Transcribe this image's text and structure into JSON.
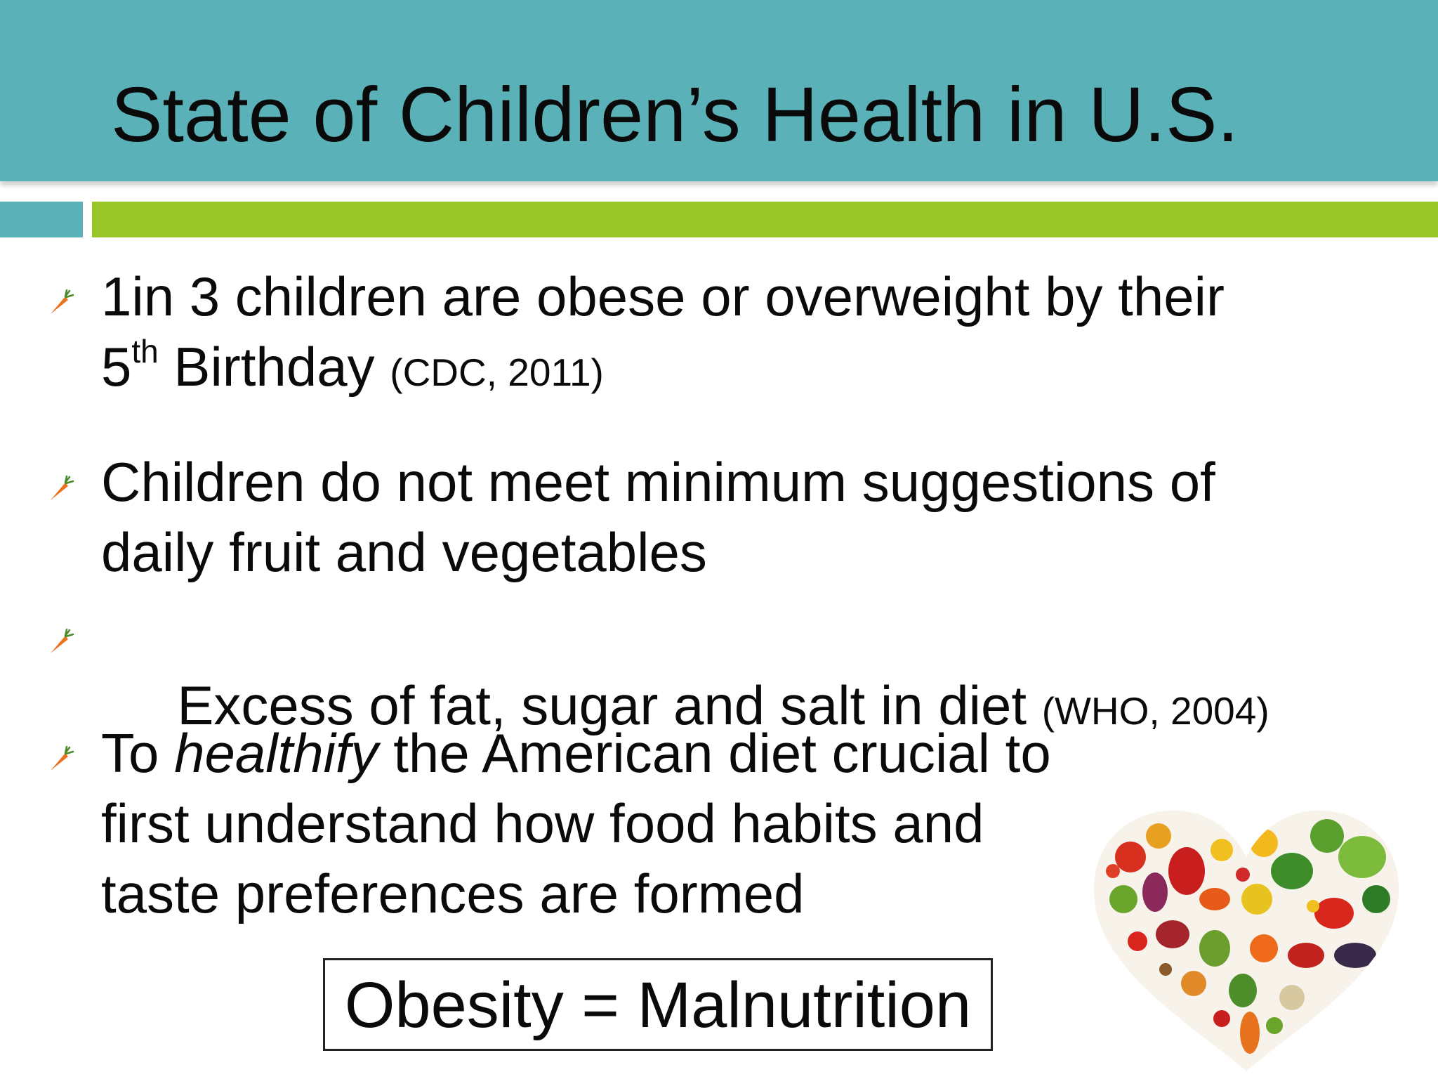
{
  "slide": {
    "title": "State of Children’s Health in U.S.",
    "bullets": [
      {
        "line1": "1in 3 children are obese or overweight by their",
        "line2_num": "5",
        "line2_sup": "th",
        "line2_rest": " Birthday ",
        "citation": "(CDC, 2011)"
      },
      {
        "line1": "Children do not meet minimum suggestions of",
        "line2": "daily fruit and vegetables"
      },
      {
        "text": " Excess of fat, sugar and salt in diet ",
        "citation": "(WHO, 2004)"
      },
      {
        "lead": "To ",
        "emphasis": "healthify",
        "line1_rest": " the American diet crucial to",
        "line2": "first understand how food habits and",
        "line3": "taste preferences are formed"
      }
    ],
    "callout": "Obesity = Malnutrition",
    "bullet_icon": "carrot-icon",
    "illustration": "vegetable-heart-image",
    "colors": {
      "title_band": "#5bb1b8",
      "accent_bar": "#9bc62a",
      "text": "#0a0a0a",
      "carrot": "#e9731e"
    }
  }
}
